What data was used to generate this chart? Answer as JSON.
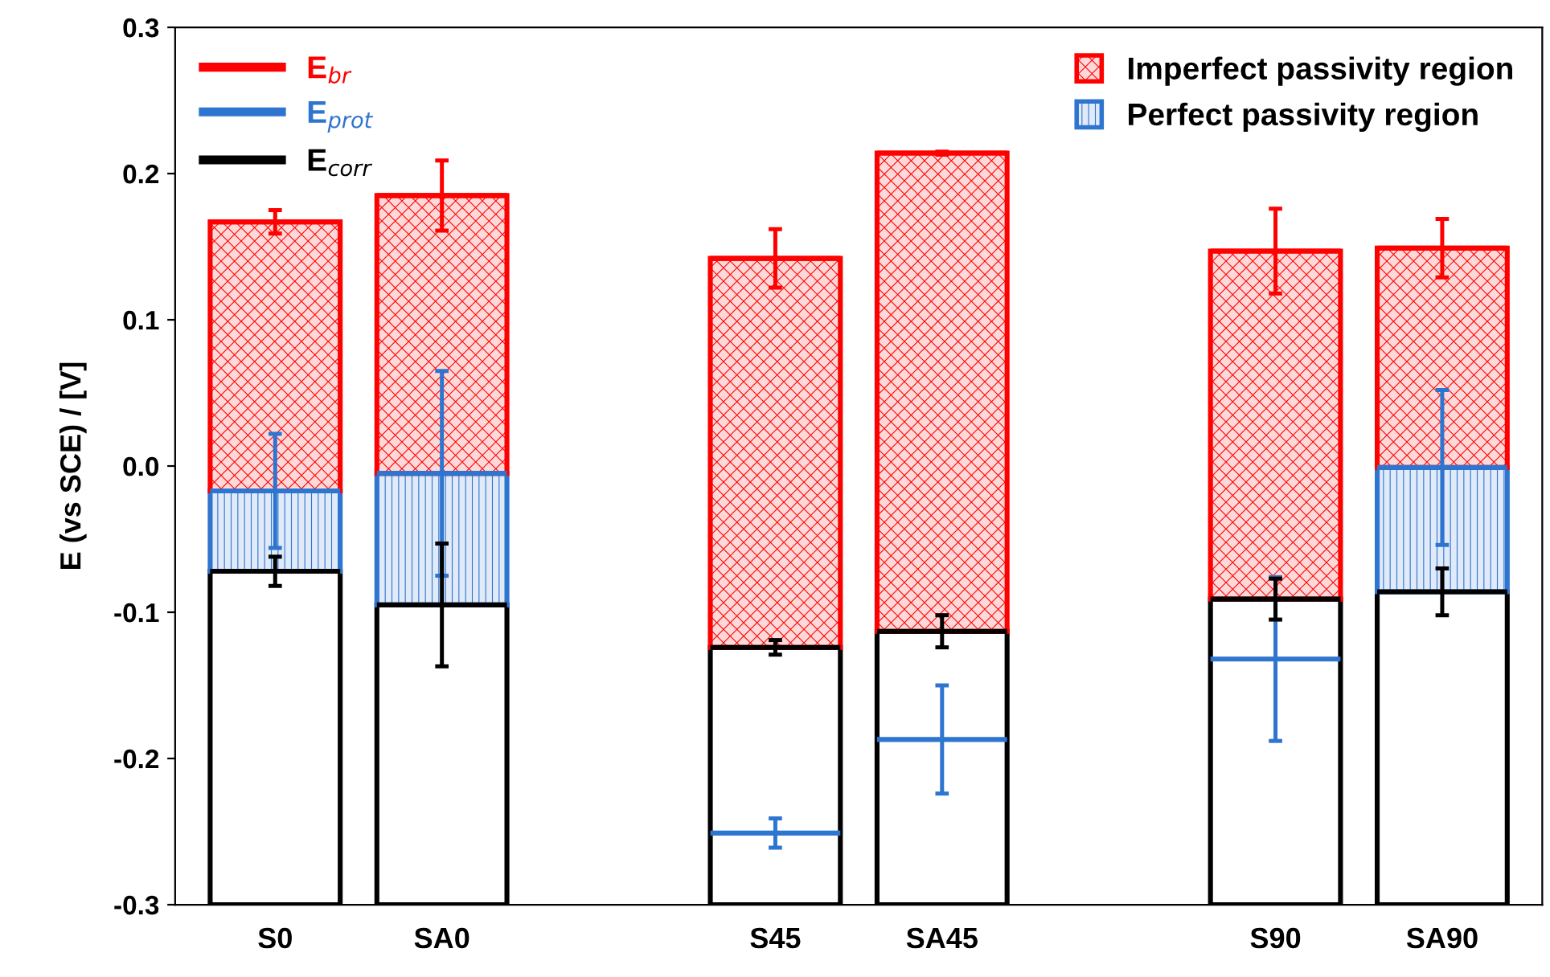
{
  "chart_data": {
    "type": "bar",
    "ylabel": "E (vs SCE) / [V]",
    "categories": [
      "S0",
      "SA0",
      null,
      "S45",
      "SA45",
      null,
      "S90",
      "SA90"
    ],
    "ylim": [
      -0.3,
      0.3
    ],
    "yticks": [
      -0.3,
      -0.2,
      -0.1,
      {
        "value": 0,
        "label": "0.0"
      },
      0.1,
      0.2,
      0.3
    ],
    "grid": false,
    "legend": "top",
    "series": [
      {
        "color": "#000000",
        "base": [
          -0.3,
          -0.3,
          null,
          -0.3,
          -0.3,
          null,
          -0.3,
          -0.3
        ],
        "values": [
          0.228,
          0.205,
          null,
          0.176,
          0.187,
          null,
          0.209,
          0.214
        ]
      },
      {
        "name": "Perfect passivity region",
        "color": "#2e75d0",
        "base": [
          -0.072,
          -0.095,
          null,
          null,
          null,
          null,
          null,
          -0.086
        ],
        "values": [
          0.055,
          0.09,
          null,
          null,
          null,
          null,
          null,
          0.085
        ]
      },
      {
        "name": "Imperfect passivity region",
        "color": "#ff0000",
        "base": [
          -0.017,
          -0.005,
          null,
          -0.124,
          -0.113,
          null,
          -0.091,
          -0.001
        ],
        "values": [
          0.184,
          0.19,
          null,
          0.266,
          0.327,
          null,
          0.238,
          0.15
        ]
      },
      {
        "name": "E$_{br}$",
        "color": "#ff0000",
        "base": [
          0.167,
          0.185,
          null,
          0.142,
          0.214,
          null,
          0.147,
          0.149
        ],
        "values": [
          0,
          0,
          null,
          0,
          0,
          null,
          0,
          0
        ],
        "errors": [
          0.008,
          0.024,
          null,
          0.02,
          0.001,
          null,
          0.029,
          0.02
        ]
      },
      {
        "name": "E$_{prot}$",
        "color": "#2e75d0",
        "base": [
          -0.017,
          -0.005,
          null,
          -0.251,
          -0.187,
          null,
          -0.132,
          -0.001
        ],
        "values": [
          0,
          0,
          null,
          0,
          0,
          null,
          0,
          0
        ],
        "errors": [
          0.039,
          0.07,
          null,
          0.01,
          0.037,
          null,
          0.056,
          0.053
        ]
      },
      {
        "name": "E$_{corr}$",
        "color": "#000000",
        "base": [
          -0.072,
          -0.095,
          null,
          -0.124,
          -0.113,
          null,
          -0.091,
          -0.086
        ],
        "values": [
          0,
          0,
          null,
          0,
          0,
          null,
          0,
          0
        ],
        "errors": [
          0.01,
          0.042,
          null,
          0.005,
          0.011,
          null,
          0.014,
          0.016
        ]
      }
    ]
  }
}
